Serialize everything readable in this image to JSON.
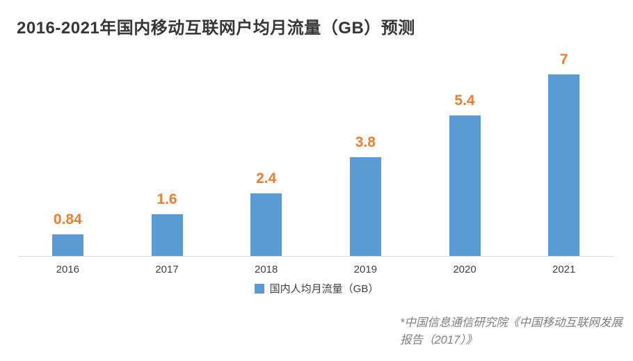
{
  "chart": {
    "title": "2016-2021年国内移动互联网户均月流量（GB）预测",
    "legend_label": "国内人均月流量（GB）",
    "source_note": "*中国信息通信研究院《中国移动互联网发展报告（2017）》"
  },
  "chart_data": {
    "type": "bar",
    "title": "2016-2021年国内移动互联网户均月流量（GB）预测",
    "categories": [
      "2016",
      "2017",
      "2018",
      "2019",
      "2020",
      "2021"
    ],
    "values": [
      0.84,
      1.6,
      2.4,
      3.8,
      5.4,
      7
    ],
    "data_labels": [
      "0.84",
      "1.6",
      "2.4",
      "3.8",
      "5.4",
      "7"
    ],
    "xlabel": "",
    "ylabel": "",
    "ylim": [
      0,
      7.5
    ],
    "grid": false,
    "legend": [
      "国内人均月流量（GB）"
    ],
    "legend_position": "bottom",
    "bar_color": "#5B9BD5",
    "data_label_color": "#ED7D31",
    "axis_line_color": "#D9D9D9"
  }
}
